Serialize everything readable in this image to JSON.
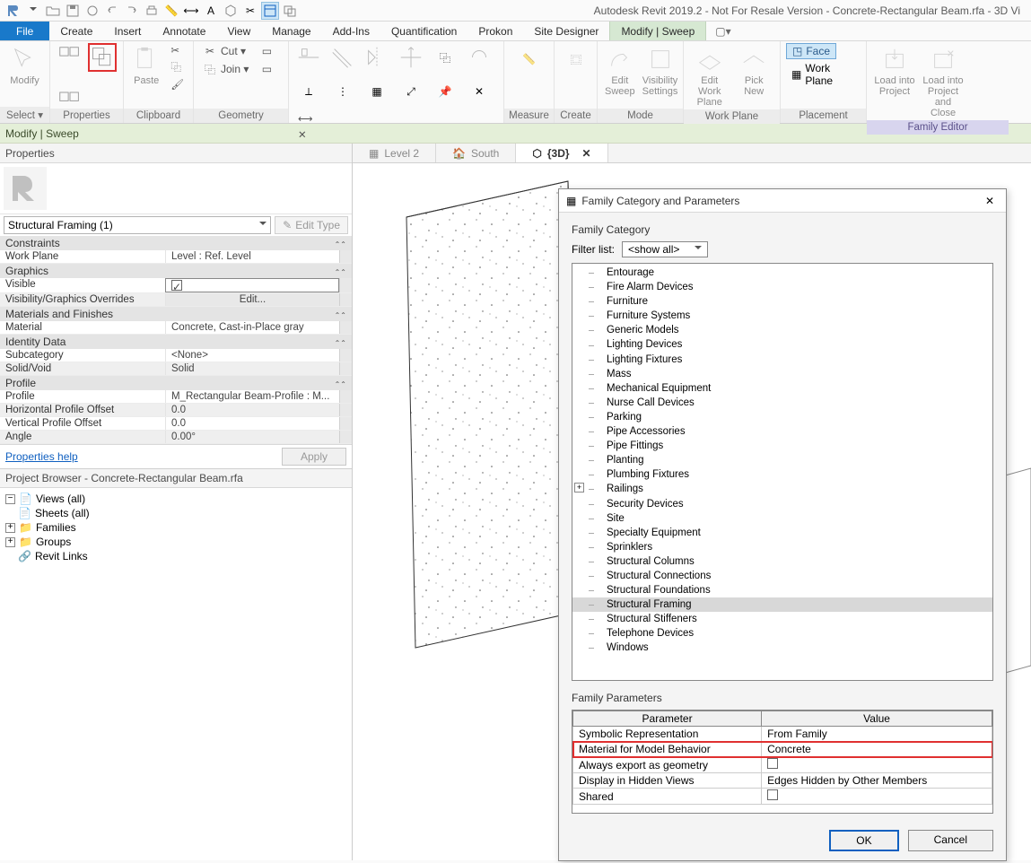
{
  "app_title": "Autodesk Revit 2019.2 - Not For Resale Version - Concrete-Rectangular Beam.rfa - 3D Vi",
  "ribbon": {
    "tabs": [
      "File",
      "Create",
      "Insert",
      "Annotate",
      "View",
      "Manage",
      "Add-Ins",
      "Quantification",
      "Prokon",
      "Site Designer",
      "Modify | Sweep"
    ],
    "active_tab": "Modify | Sweep",
    "panels": {
      "select": "Select ▾",
      "modify": "Modify",
      "properties": "Properties",
      "clipboard": "Clipboard",
      "paste": "Paste",
      "cut": "Cut ▾",
      "join": "Join ▾",
      "geometry": "Geometry",
      "modify2": "Modify",
      "measure": "Measure",
      "create": "Create",
      "edit_sweep": "Edit\nSweep",
      "visibility_settings": "Visibility\nSettings",
      "mode": "Mode",
      "edit_wp": "Edit\nWork Plane",
      "pick_new": "Pick\nNew",
      "workplane": "Work Plane",
      "face": "Face",
      "work_plane_btn": "Work Plane",
      "placement": "Placement",
      "load_project": "Load into\nProject",
      "load_close": "Load into\nProject and Close",
      "family_editor": "Family Editor"
    }
  },
  "context_bar": "Modify | Sweep",
  "properties": {
    "title": "Properties",
    "type_name": "Structural Framing (1)",
    "edit_type": "Edit Type",
    "help": "Properties help",
    "apply": "Apply",
    "sections": {
      "constraints": "Constraints",
      "graphics": "Graphics",
      "materials": "Materials and Finishes",
      "identity": "Identity Data",
      "profile": "Profile"
    },
    "rows": {
      "work_plane": {
        "l": "Work Plane",
        "v": "Level : Ref. Level"
      },
      "visible": {
        "l": "Visible",
        "v": "☑"
      },
      "vg": {
        "l": "Visibility/Graphics Overrides",
        "v": "Edit..."
      },
      "material": {
        "l": "Material",
        "v": "Concrete, Cast-in-Place gray"
      },
      "subcat": {
        "l": "Subcategory",
        "v": "<None>"
      },
      "solidvoid": {
        "l": "Solid/Void",
        "v": "Solid"
      },
      "profile_name": {
        "l": "Profile",
        "v": "M_Rectangular Beam-Profile : M..."
      },
      "hpo": {
        "l": "Horizontal Profile Offset",
        "v": "0.0"
      },
      "vpo": {
        "l": "Vertical Profile Offset",
        "v": "0.0"
      },
      "angle": {
        "l": "Angle",
        "v": "0.00°"
      }
    }
  },
  "browser": {
    "title": "Project Browser - Concrete-Rectangular Beam.rfa",
    "items": [
      "Views (all)",
      "Sheets (all)",
      "Families",
      "Groups",
      "Revit Links"
    ]
  },
  "view_tabs": {
    "level2": "Level 2",
    "south": "South",
    "view3d": "{3D}"
  },
  "dialog": {
    "title": "Family Category and Parameters",
    "family_category": "Family Category",
    "filter_list": "Filter list:",
    "filter_value": "<show all>",
    "categories": [
      "Entourage",
      "Fire Alarm Devices",
      "Furniture",
      "Furniture Systems",
      "Generic Models",
      "Lighting Devices",
      "Lighting Fixtures",
      "Mass",
      "Mechanical Equipment",
      "Nurse Call Devices",
      "Parking",
      "Pipe Accessories",
      "Pipe Fittings",
      "Planting",
      "Plumbing Fixtures",
      "Railings",
      "Security Devices",
      "Site",
      "Specialty Equipment",
      "Sprinklers",
      "Structural Columns",
      "Structural Connections",
      "Structural Foundations",
      "Structural Framing",
      "Structural Stiffeners",
      "Telephone Devices",
      "Windows"
    ],
    "selected_category": "Structural Framing",
    "expandable_category": "Railings",
    "family_parameters": "Family Parameters",
    "param_header": {
      "p": "Parameter",
      "v": "Value"
    },
    "params": [
      {
        "p": "Symbolic Representation",
        "v": "From Family"
      },
      {
        "p": "Material for Model Behavior",
        "v": "Concrete",
        "hl": true
      },
      {
        "p": "Always export as geometry",
        "v": "[checkbox]"
      },
      {
        "p": "Display in Hidden Views",
        "v": "Edges Hidden by Other Members"
      },
      {
        "p": "Shared",
        "v": "[checkbox]"
      }
    ],
    "ok": "OK",
    "cancel": "Cancel"
  },
  "colors": {
    "highlight_red": "#e03030",
    "ribbon_active": "#d6e8d2",
    "file_tab": "#1979ca",
    "context_bg": "#e4efd8",
    "face_btn": "#cde6f7",
    "fam_editor": "#d8d5ee"
  }
}
